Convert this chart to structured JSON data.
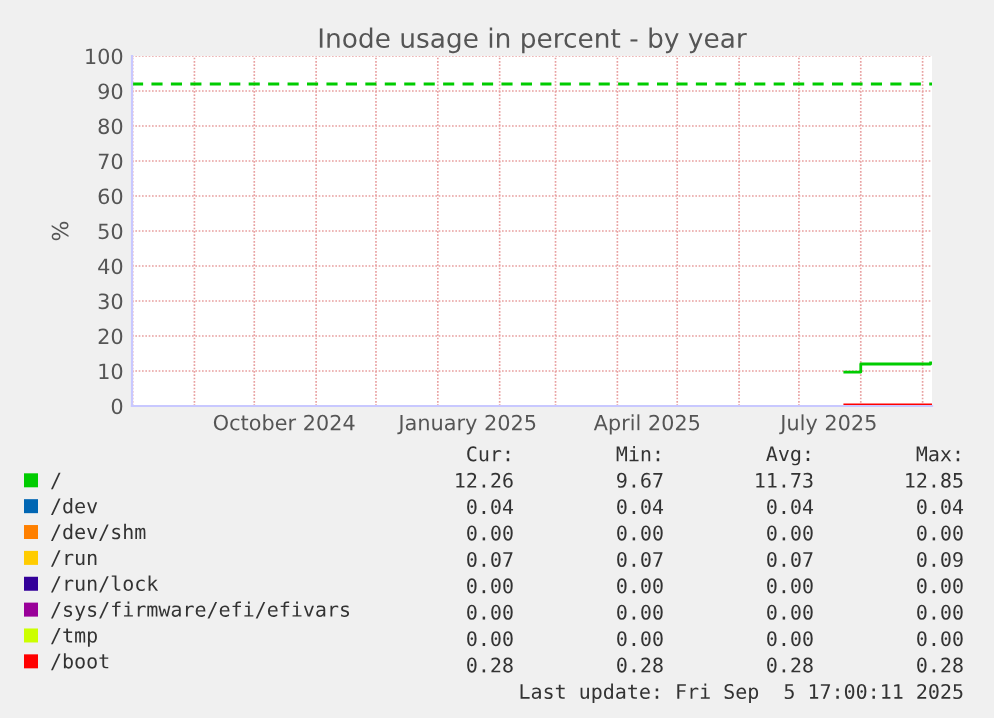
{
  "chart_data": {
    "type": "step",
    "title": "Inode usage in percent - by year",
    "ylabel": "%",
    "xlim": [
      "2024-07-31T17:00",
      "2025-09-05T17:00"
    ],
    "ylim": [
      0,
      100
    ],
    "xticks": [
      {
        "value": "2024-08-01",
        "label": null
      },
      {
        "value": "2024-09-01",
        "label": null
      },
      {
        "value": "2024-10-01",
        "label": null
      },
      {
        "value": "2024-10-16",
        "label": "October 2024"
      },
      {
        "value": "2024-11-01",
        "label": null
      },
      {
        "value": "2024-12-01",
        "label": null
      },
      {
        "value": "2025-01-01",
        "label": null
      },
      {
        "value": "2025-01-16",
        "label": "January 2025"
      },
      {
        "value": "2025-02-01",
        "label": null
      },
      {
        "value": "2025-03-01",
        "label": null
      },
      {
        "value": "2025-04-01",
        "label": null
      },
      {
        "value": "2025-04-16",
        "label": "April 2025"
      },
      {
        "value": "2025-05-01",
        "label": null
      },
      {
        "value": "2025-06-01",
        "label": null
      },
      {
        "value": "2025-07-01",
        "label": null
      },
      {
        "value": "2025-07-16",
        "label": "July 2025"
      },
      {
        "value": "2025-08-01",
        "label": null
      },
      {
        "value": "2025-09-01",
        "label": null
      }
    ],
    "yticks": [
      0,
      10,
      20,
      30,
      40,
      50,
      60,
      70,
      80,
      90,
      100
    ],
    "grid": true,
    "legend": "bottom",
    "series": [
      {
        "name": "/",
        "color": "#00cc00",
        "x": [
          "2025-07-24",
          "2025-08-01",
          "2025-09-05"
        ],
        "values": [
          9.7,
          12,
          12.3
        ]
      },
      {
        "name": "/dev",
        "color": "#0066b3"
      },
      {
        "name": "/dev/shm",
        "color": "#ff8000"
      },
      {
        "name": "/run",
        "color": "#ffcc00"
      },
      {
        "name": "/run/lock",
        "color": "#330099"
      },
      {
        "name": "/sys/firmware/efi/efivars",
        "color": "#990099"
      },
      {
        "name": "/tmp",
        "color": "#ccff00"
      },
      {
        "name": "/boot",
        "color": "#ff0000",
        "x": [
          "2025-07-24",
          "2025-09-05"
        ],
        "values": [
          0.3,
          0.3
        ]
      }
    ],
    "ref_lines": [
      {
        "axis": "y",
        "value": 92,
        "label": null,
        "color": "#00cc00",
        "line_style": "dashed"
      }
    ],
    "annotations": [
      "Cur:",
      "Min:",
      "Avg:",
      "Max:",
      "12.26",
      "9.67",
      "11.73",
      "12.85",
      "0.04",
      "0.04",
      "0.04",
      "0.04",
      "0.00",
      "0.00",
      "0.00",
      "0.00",
      "0.07",
      "0.07",
      "0.07",
      "0.09",
      "0.00",
      "0.00",
      "0.00",
      "0.00",
      "0.00",
      "0.00",
      "0.00",
      "0.00",
      "0.00",
      "0.00",
      "0.00",
      "0.00",
      "0.28",
      "0.28",
      "0.28",
      "0.28",
      "Last update: Fri Sep  5 17:00:11 2025"
    ]
  }
}
